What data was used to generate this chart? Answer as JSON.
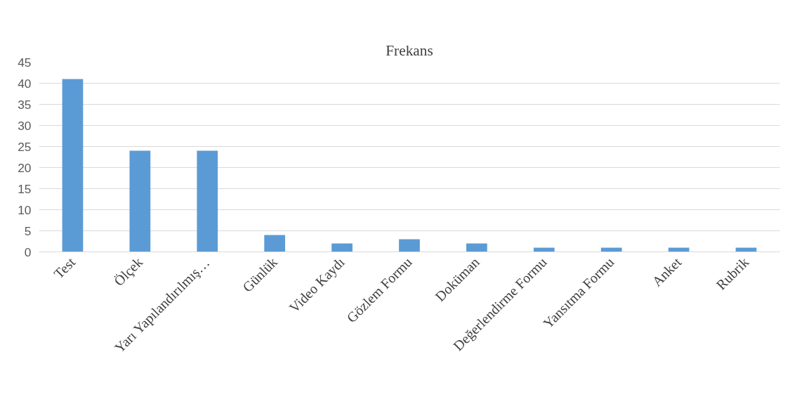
{
  "chart_data": {
    "type": "bar",
    "title": "Frekans",
    "categories": [
      "Test",
      "Ölçek",
      "Yarı Yapılandırılmış…",
      "Günlük",
      "Video Kaydı",
      "Gözlem Formu",
      "Doküman",
      "Değerlendirme Formu",
      "Yansıtma Formu",
      "Anket",
      "Rubrik"
    ],
    "values": [
      41,
      24,
      24,
      4,
      2,
      3,
      2,
      1,
      1,
      1,
      1
    ],
    "color": "#5b9bd5",
    "ylim": [
      0,
      45
    ],
    "yticks": [
      0,
      5,
      10,
      15,
      20,
      25,
      30,
      35,
      40,
      45
    ],
    "grid": "y"
  }
}
